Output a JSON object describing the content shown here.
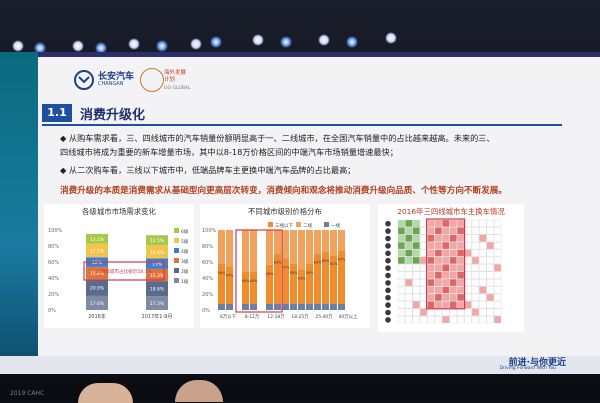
{
  "brand": {
    "name": "长安汽车",
    "sub": "CHANGAN",
    "badge": "海外发展计划",
    "badge_sub": "GO GLOBAL"
  },
  "section": {
    "num": "1.1",
    "title": "消费升级化"
  },
  "bullets": [
    "◆ 从购车需求看，三、四线城市的汽车销量份额明显高于一、二线城市，在全国汽车销量中的占比越来越高。未来的三、",
    "   四线城市将成为重要的新车增量市场，其中以8-18万价格区间的中端汽车市场销量增速最快；",
    "◆ 从二次购车看，三线以下城市中，低端品牌车主更换中端汽车品牌的占比最高；"
  ],
  "emphasis": "消费升级的本质是消费需求从基础型向更高层次转变，消费倾向和观念将推动消费升级向品质、个性等方向不断发展。",
  "charts": [
    {
      "title": "各级城市市场需求变化",
      "type": "bar",
      "categories": [
        "2016年",
        "2017年1-9月"
      ],
      "legend": [
        "6级",
        "5级",
        "4级",
        "3级",
        "2级",
        "1级"
      ],
      "callout": "三四级城市占比接近58.7%",
      "series": [
        {
          "name": "1级",
          "values": [
            17.6,
            17.3
          ]
        },
        {
          "name": "2级",
          "values": [
            20.9,
            18.8
          ]
        },
        {
          "name": "3级",
          "values": [
            15.4,
            15.3
          ]
        },
        {
          "name": "4级",
          "values": [
            12.0,
            13.0
          ]
        },
        {
          "name": "5级",
          "values": [
            17.1,
            16.6
          ]
        },
        {
          "name": "6级",
          "values": [
            12.1,
            12.5
          ]
        }
      ],
      "ylabels": [
        "100%",
        "80%",
        "60%",
        "40%",
        "20%",
        "0%"
      ]
    },
    {
      "title": "不同城市级别价格分布",
      "type": "bar",
      "legend": [
        "三线以下",
        "二线",
        "一线"
      ],
      "categories": [
        "8万以下",
        "8-12万",
        "12-18万",
        "18-25万",
        "25-40万",
        "40万以上"
      ],
      "top_labels": [
        "50%",
        "47%",
        "40%",
        "40%",
        "49%",
        "63%",
        "57%",
        "50%",
        "43%",
        "50%",
        "63%",
        "65%",
        "61%",
        "67%"
      ],
      "ylabels": [
        "100%",
        "80%",
        "60%",
        "40%",
        "20%",
        "0%"
      ]
    },
    {
      "title": "2016年三四线城市车主换车情况",
      "type": "heatmap",
      "rows": 14,
      "cols": 14
    }
  ],
  "footer": {
    "brand": "前进·与你更近",
    "sub": "Driving Forward With You"
  },
  "bottom_tag": "2019 CAHC"
}
